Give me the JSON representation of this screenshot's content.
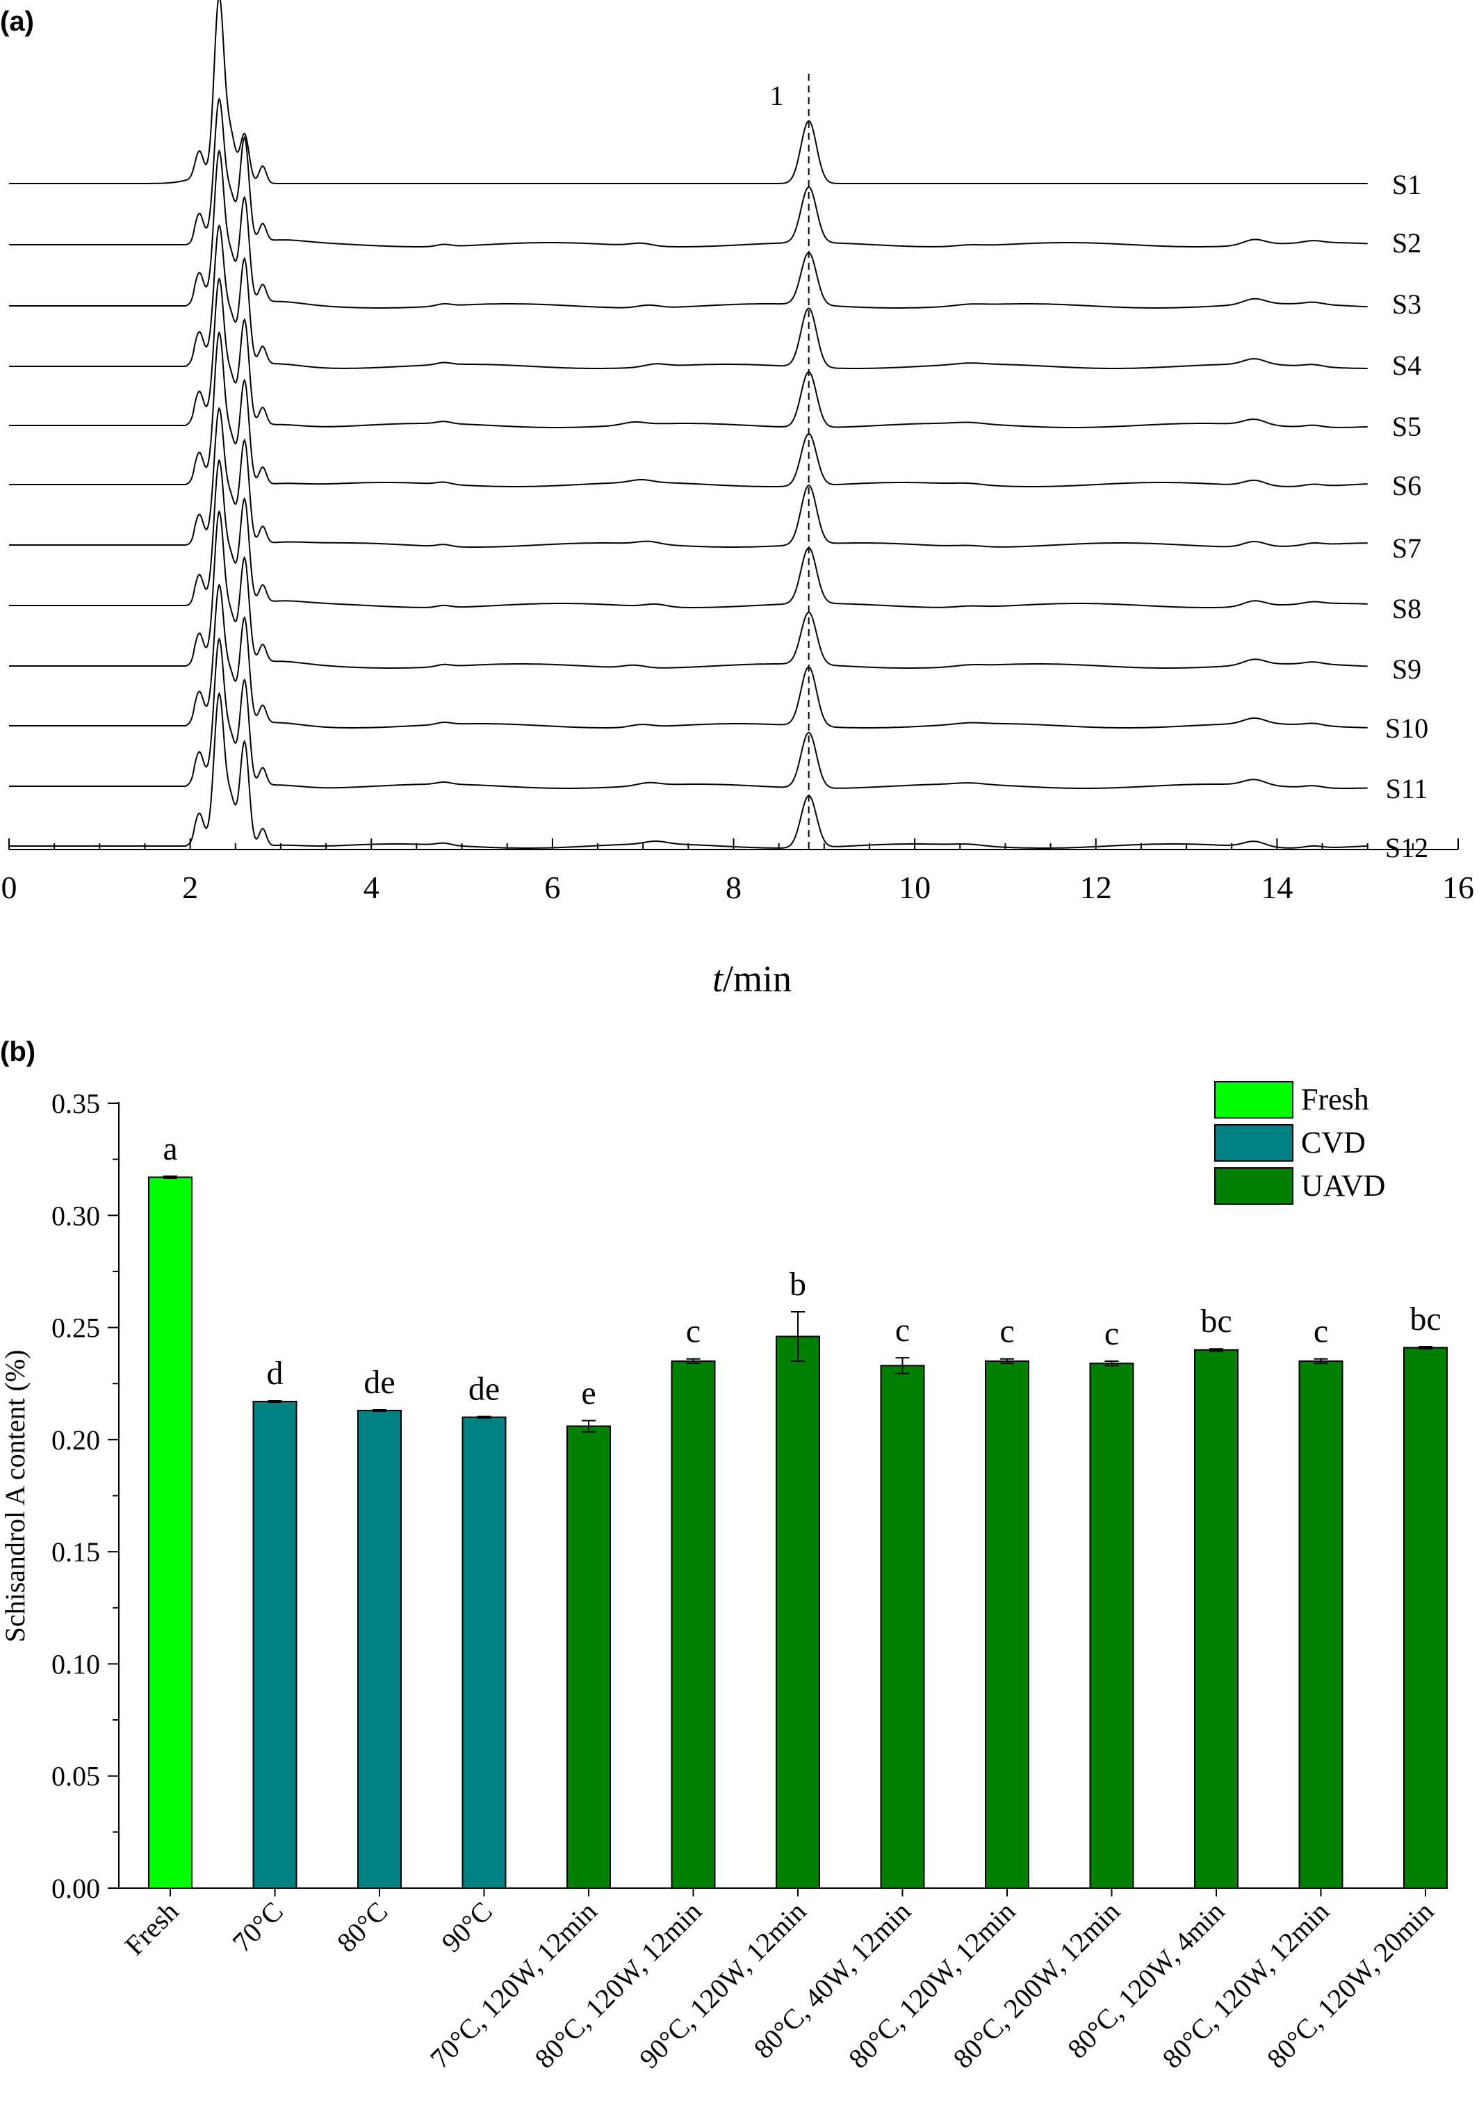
{
  "panels": {
    "a_label": "(a)",
    "b_label": "(b)"
  },
  "chart_data": [
    {
      "type": "line",
      "panel": "(a)",
      "xlabel_italic": "t",
      "xlabel_rest": "/min",
      "xlim": [
        0,
        16
      ],
      "xticks": [
        "0",
        "2",
        "4",
        "6",
        "8",
        "10",
        "12",
        "14",
        "16"
      ],
      "grid": false,
      "series": [
        {
          "name": "S1"
        },
        {
          "name": "S2"
        },
        {
          "name": "S3"
        },
        {
          "name": "S4"
        },
        {
          "name": "S5"
        },
        {
          "name": "S6"
        },
        {
          "name": "S7"
        },
        {
          "name": "S8"
        },
        {
          "name": "S9"
        },
        {
          "name": "S10"
        },
        {
          "name": "S11"
        },
        {
          "name": "S12"
        }
      ],
      "peak_annotation": {
        "label": "1",
        "x": 8.83,
        "style": "dashed vertical line"
      },
      "x_end": 15
    },
    {
      "type": "bar",
      "panel": "(b)",
      "ylabel": "Schisandrol A content (%)",
      "ylim": [
        0,
        0.35
      ],
      "yticks": [
        "0.00",
        "0.05",
        "0.10",
        "0.15",
        "0.20",
        "0.25",
        "0.30",
        "0.35"
      ],
      "grid": false,
      "legend_placement": "top-right",
      "groups": [
        {
          "name": "Fresh",
          "color": "#00ff00"
        },
        {
          "name": "CVD",
          "color": "#008080"
        },
        {
          "name": "UAVD",
          "color": "#008000"
        }
      ],
      "categories": [
        "Fresh",
        "70°C",
        "80°C",
        "90°C",
        "70°C, 120W, 12min",
        "80°C, 120W, 12min",
        "90°C, 120W, 12min",
        "80°C, 40W, 12min",
        "80°C, 120W, 12min",
        "80°C, 200W, 12min",
        "80°C, 120W, 4min",
        "80°C, 120W, 12min",
        "80°C, 120W, 20min"
      ],
      "values": [
        0.317,
        0.217,
        0.213,
        0.21,
        0.206,
        0.235,
        0.246,
        0.233,
        0.235,
        0.234,
        0.24,
        0.235,
        0.241
      ],
      "errors": [
        0.0005,
        0.0003,
        0.0003,
        0.0003,
        0.0025,
        0.001,
        0.011,
        0.0035,
        0.001,
        0.001,
        0.0005,
        0.001,
        0.0005
      ],
      "bar_groups": [
        "Fresh",
        "CVD",
        "CVD",
        "CVD",
        "UAVD",
        "UAVD",
        "UAVD",
        "UAVD",
        "UAVD",
        "UAVD",
        "UAVD",
        "UAVD",
        "UAVD"
      ],
      "significance": [
        "a",
        "d",
        "de",
        "de",
        "e",
        "c",
        "b",
        "c",
        "c",
        "c",
        "bc",
        "c",
        "bc"
      ]
    }
  ]
}
